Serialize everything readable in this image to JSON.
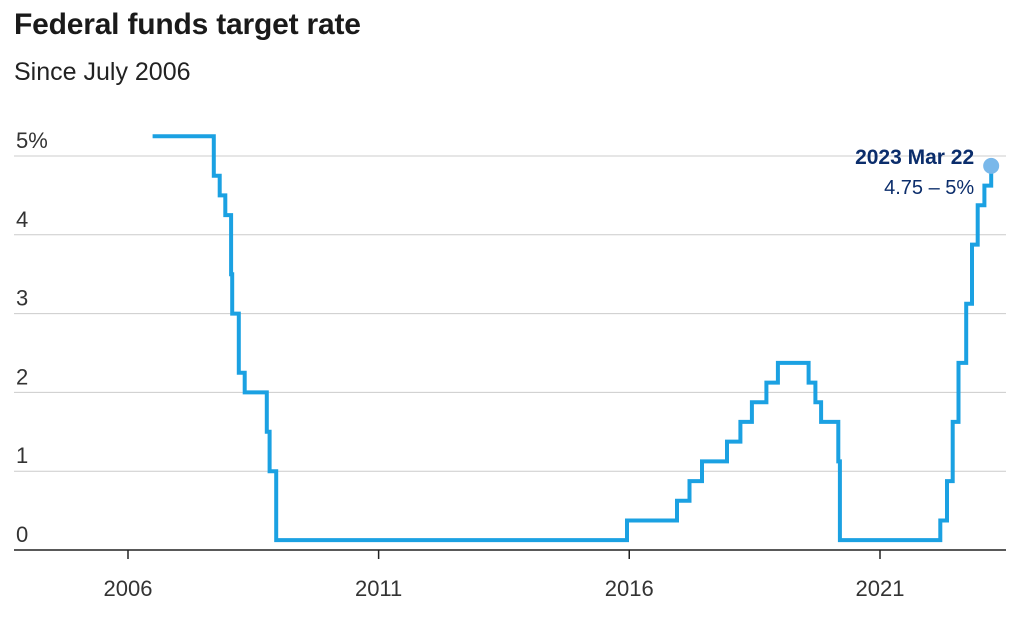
{
  "colors": {
    "line": "#1ba1e2",
    "annotation": "#0b2d6b",
    "dot": "#79b8ea",
    "grid": "#cccccc",
    "axis": "#222222"
  },
  "chart_data": {
    "type": "line",
    "title": "Federal funds target rate",
    "subtitle": "Since July 2006",
    "ylim": [
      0,
      5.25
    ],
    "y_ticks": [
      {
        "value": 0,
        "label": "0"
      },
      {
        "value": 1,
        "label": "1"
      },
      {
        "value": 2,
        "label": "2"
      },
      {
        "value": 3,
        "label": "3"
      },
      {
        "value": 4,
        "label": "4"
      },
      {
        "value": 5,
        "label": "5%"
      }
    ],
    "x_ticks": [
      {
        "value": "2006-01-01",
        "label": "2006"
      },
      {
        "value": "2011-01-01",
        "label": "2011"
      },
      {
        "value": "2016-01-01",
        "label": "2016"
      },
      {
        "value": "2021-01-01",
        "label": "2021"
      }
    ],
    "grid": true,
    "series": [
      {
        "values": [
          [
            "2006-06-29",
            5.25
          ],
          [
            "2007-09-18",
            4.75
          ],
          [
            "2007-10-31",
            4.5
          ],
          [
            "2007-12-11",
            4.25
          ],
          [
            "2008-01-22",
            3.5
          ],
          [
            "2008-01-30",
            3.0
          ],
          [
            "2008-03-18",
            2.25
          ],
          [
            "2008-04-30",
            2.0
          ],
          [
            "2008-10-08",
            1.5
          ],
          [
            "2008-10-29",
            1.0
          ],
          [
            "2008-12-16",
            0.125
          ],
          [
            "2015-12-16",
            0.375
          ],
          [
            "2016-12-14",
            0.625
          ],
          [
            "2017-03-15",
            0.875
          ],
          [
            "2017-06-14",
            1.125
          ],
          [
            "2017-12-13",
            1.375
          ],
          [
            "2018-03-21",
            1.625
          ],
          [
            "2018-06-13",
            1.875
          ],
          [
            "2018-09-26",
            2.125
          ],
          [
            "2018-12-19",
            2.375
          ],
          [
            "2019-07-31",
            2.125
          ],
          [
            "2019-09-18",
            1.875
          ],
          [
            "2019-10-30",
            1.625
          ],
          [
            "2020-03-03",
            1.125
          ],
          [
            "2020-03-15",
            0.125
          ],
          [
            "2022-03-16",
            0.375
          ],
          [
            "2022-05-04",
            0.875
          ],
          [
            "2022-06-15",
            1.625
          ],
          [
            "2022-07-27",
            2.375
          ],
          [
            "2022-09-21",
            3.125
          ],
          [
            "2022-11-02",
            3.875
          ],
          [
            "2022-12-14",
            4.375
          ],
          [
            "2023-02-01",
            4.625
          ],
          [
            "2023-03-22",
            4.875
          ]
        ]
      }
    ],
    "annotations": [
      {
        "date": "2023 Mar 22",
        "value": "4.75 – 5%"
      }
    ]
  }
}
